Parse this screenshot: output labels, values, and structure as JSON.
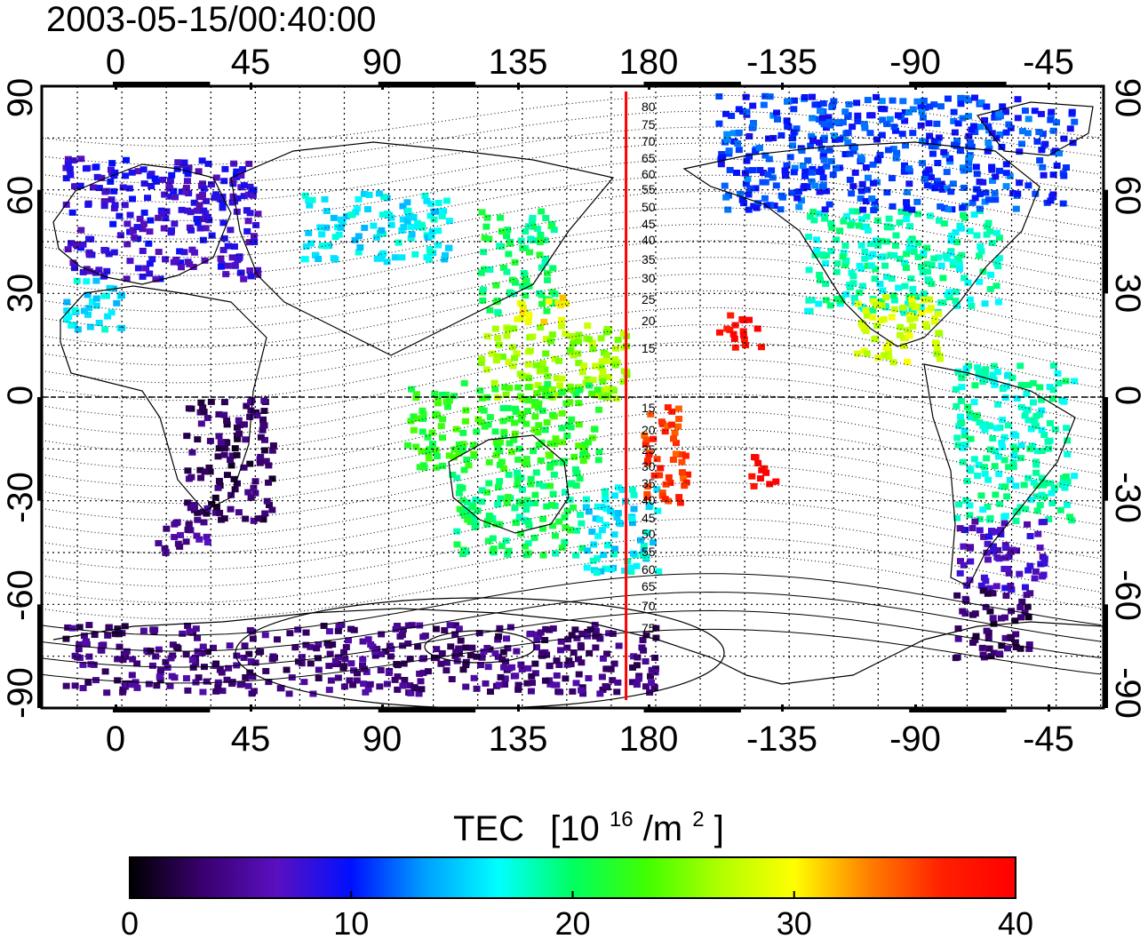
{
  "title": "2003-05-15/00:40:00",
  "map": {
    "lon_ticks": [
      "0",
      "45",
      "90",
      "135",
      "180",
      "-135",
      "-90",
      "-45"
    ],
    "lat_ticks": [
      "90",
      "60",
      "30",
      "0",
      "-30",
      "-60",
      "-90"
    ],
    "contour_labels_north": [
      "80",
      "75",
      "70",
      "65",
      "60",
      "55",
      "50",
      "45",
      "40",
      "35",
      "30",
      "25",
      "20",
      "15"
    ],
    "contour_labels_south": [
      "15",
      "20",
      "25",
      "30",
      "35",
      "40",
      "45",
      "50",
      "55",
      "60",
      "65",
      "70",
      "75"
    ],
    "terminator_color": "#ff0000",
    "marker_longitude": 170
  },
  "colorbar": {
    "title": "TEC",
    "unit_base": "[10",
    "unit_exp": "16",
    "unit_mid": "/m",
    "unit_exp2": "2",
    "unit_end": "]",
    "ticks": [
      "0",
      "10",
      "20",
      "30",
      "40"
    ],
    "min": 0,
    "max": 40,
    "stops": [
      "#000000",
      "#3a0070",
      "#5a10c0",
      "#0010ff",
      "#00a0ff",
      "#00ffff",
      "#00ff60",
      "#40ff00",
      "#b0ff00",
      "#ffff00",
      "#ff8000",
      "#ff2000",
      "#ff0000"
    ]
  },
  "tec_regions": [
    {
      "lon": [
        -20,
        45
      ],
      "lat": [
        35,
        70
      ],
      "tec": 8
    },
    {
      "lon": [
        -20,
        0
      ],
      "lat": [
        20,
        35
      ],
      "tec": 16
    },
    {
      "lon": [
        60,
        110
      ],
      "lat": [
        40,
        60
      ],
      "tec": 16
    },
    {
      "lon": [
        120,
        145
      ],
      "lat": [
        25,
        55
      ],
      "tec": 20
    },
    {
      "lon": [
        130,
        150
      ],
      "lat": [
        22,
        30
      ],
      "tec": 30
    },
    {
      "lon": [
        120,
        170
      ],
      "lat": [
        0,
        22
      ],
      "tec": 26
    },
    {
      "lon": [
        95,
        160
      ],
      "lat": [
        -20,
        5
      ],
      "tec": 22
    },
    {
      "lon": [
        110,
        155
      ],
      "lat": [
        -45,
        -20
      ],
      "tec": 20
    },
    {
      "lon": [
        155,
        180
      ],
      "lat": [
        -50,
        -25
      ],
      "tec": 16
    },
    {
      "lon": [
        175,
        190
      ],
      "lat": [
        -30,
        0
      ],
      "tec": 36
    },
    {
      "lon": [
        200,
        215
      ],
      "lat": [
        15,
        25
      ],
      "tec": 39
    },
    {
      "lon": [
        210,
        220
      ],
      "lat": [
        -25,
        -15
      ],
      "tec": 39
    },
    {
      "lon": [
        20,
        50
      ],
      "lat": [
        -35,
        0
      ],
      "tec": 3
    },
    {
      "lon": [
        10,
        30
      ],
      "lat": [
        -45,
        -35
      ],
      "tec": 5
    },
    {
      "lon": [
        -80,
        -40
      ],
      "lat": [
        -35,
        10
      ],
      "tec": 18
    },
    {
      "lon": [
        -80,
        -50
      ],
      "lat": [
        -55,
        -35
      ],
      "tec": 7
    },
    {
      "lon": [
        -80,
        -55
      ],
      "lat": [
        -75,
        -55
      ],
      "tec": 3
    },
    {
      "lon": [
        -130,
        -65
      ],
      "lat": [
        25,
        55
      ],
      "tec": 18
    },
    {
      "lon": [
        -115,
        -85
      ],
      "lat": [
        10,
        30
      ],
      "tec": 28
    },
    {
      "lon": [
        -160,
        -40
      ],
      "lat": [
        55,
        88
      ],
      "tec": 11
    },
    {
      "lon": [
        -20,
        180
      ],
      "lat": [
        -85,
        -65
      ],
      "tec": 4
    }
  ]
}
